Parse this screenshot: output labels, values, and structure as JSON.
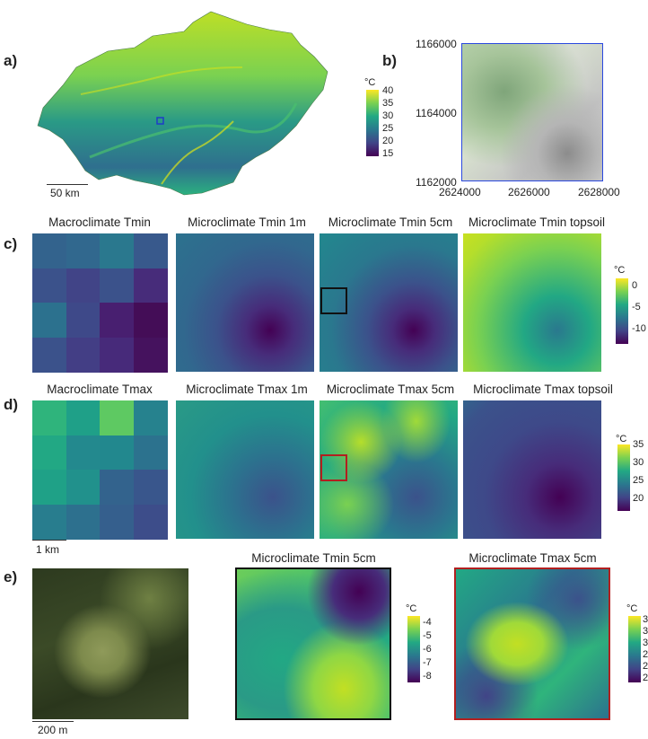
{
  "panels": {
    "a": "a)",
    "b": "b)",
    "c": "c)",
    "d": "d)",
    "e": "e)"
  },
  "panel_a": {
    "legend_unit": "°C",
    "legend_ticks": [
      "40",
      "35",
      "30",
      "25",
      "20",
      "15"
    ],
    "scale_label": "50 km"
  },
  "panel_b": {
    "y_ticks": [
      "1166000",
      "1164000",
      "1162000"
    ],
    "x_ticks": [
      "2624000",
      "2626000",
      "2628000"
    ]
  },
  "row_c": {
    "titles": [
      "Macroclimate Tmin",
      "Microclimate Tmin 1m",
      "Microclimate Tmin 5cm",
      "Microclimate Tmin topsoil"
    ],
    "legend_unit": "°C",
    "legend_ticks": [
      "0",
      "-5",
      "-10"
    ],
    "macro_grid": [
      [
        "#33638d",
        "#31688e",
        "#2a788e",
        "#38598c"
      ],
      [
        "#3b528b",
        "#414487",
        "#3b528b",
        "#472c7a"
      ],
      [
        "#2c718e",
        "#3e4989",
        "#481f70",
        "#440d57"
      ],
      [
        "#3b528b",
        "#433e85",
        "#472a7a",
        "#45125e"
      ]
    ]
  },
  "row_d": {
    "titles": [
      "Macroclimate Tmax",
      "Microclimate Tmax 1m",
      "Microclimate Tmax 5cm",
      "Microclimate Tmax topsoil"
    ],
    "legend_unit": "°C",
    "legend_ticks": [
      "35",
      "30",
      "25",
      "20"
    ],
    "scale_label": "1 km",
    "macro_grid": [
      [
        "#2fb47c",
        "#1fa088",
        "#5ec962",
        "#26828e"
      ],
      [
        "#22a884",
        "#23898e",
        "#22888e",
        "#2c728e"
      ],
      [
        "#1fa187",
        "#21918c",
        "#33638d",
        "#39568c"
      ],
      [
        "#287d8e",
        "#2d708e",
        "#355f8d",
        "#3d4d8a"
      ]
    ]
  },
  "row_e": {
    "titles": [
      "Microclimate Tmin 5cm",
      "Microclimate Tmax 5cm"
    ],
    "scale_label": "200 m",
    "tmin_legend_unit": "°C",
    "tmin_legend_ticks": [
      "-4",
      "-5",
      "-6",
      "-7",
      "-8"
    ],
    "tmax_legend_unit": "°C",
    "tmax_legend_ticks": [
      "3",
      "3",
      "3",
      "2",
      "2",
      "2"
    ]
  }
}
